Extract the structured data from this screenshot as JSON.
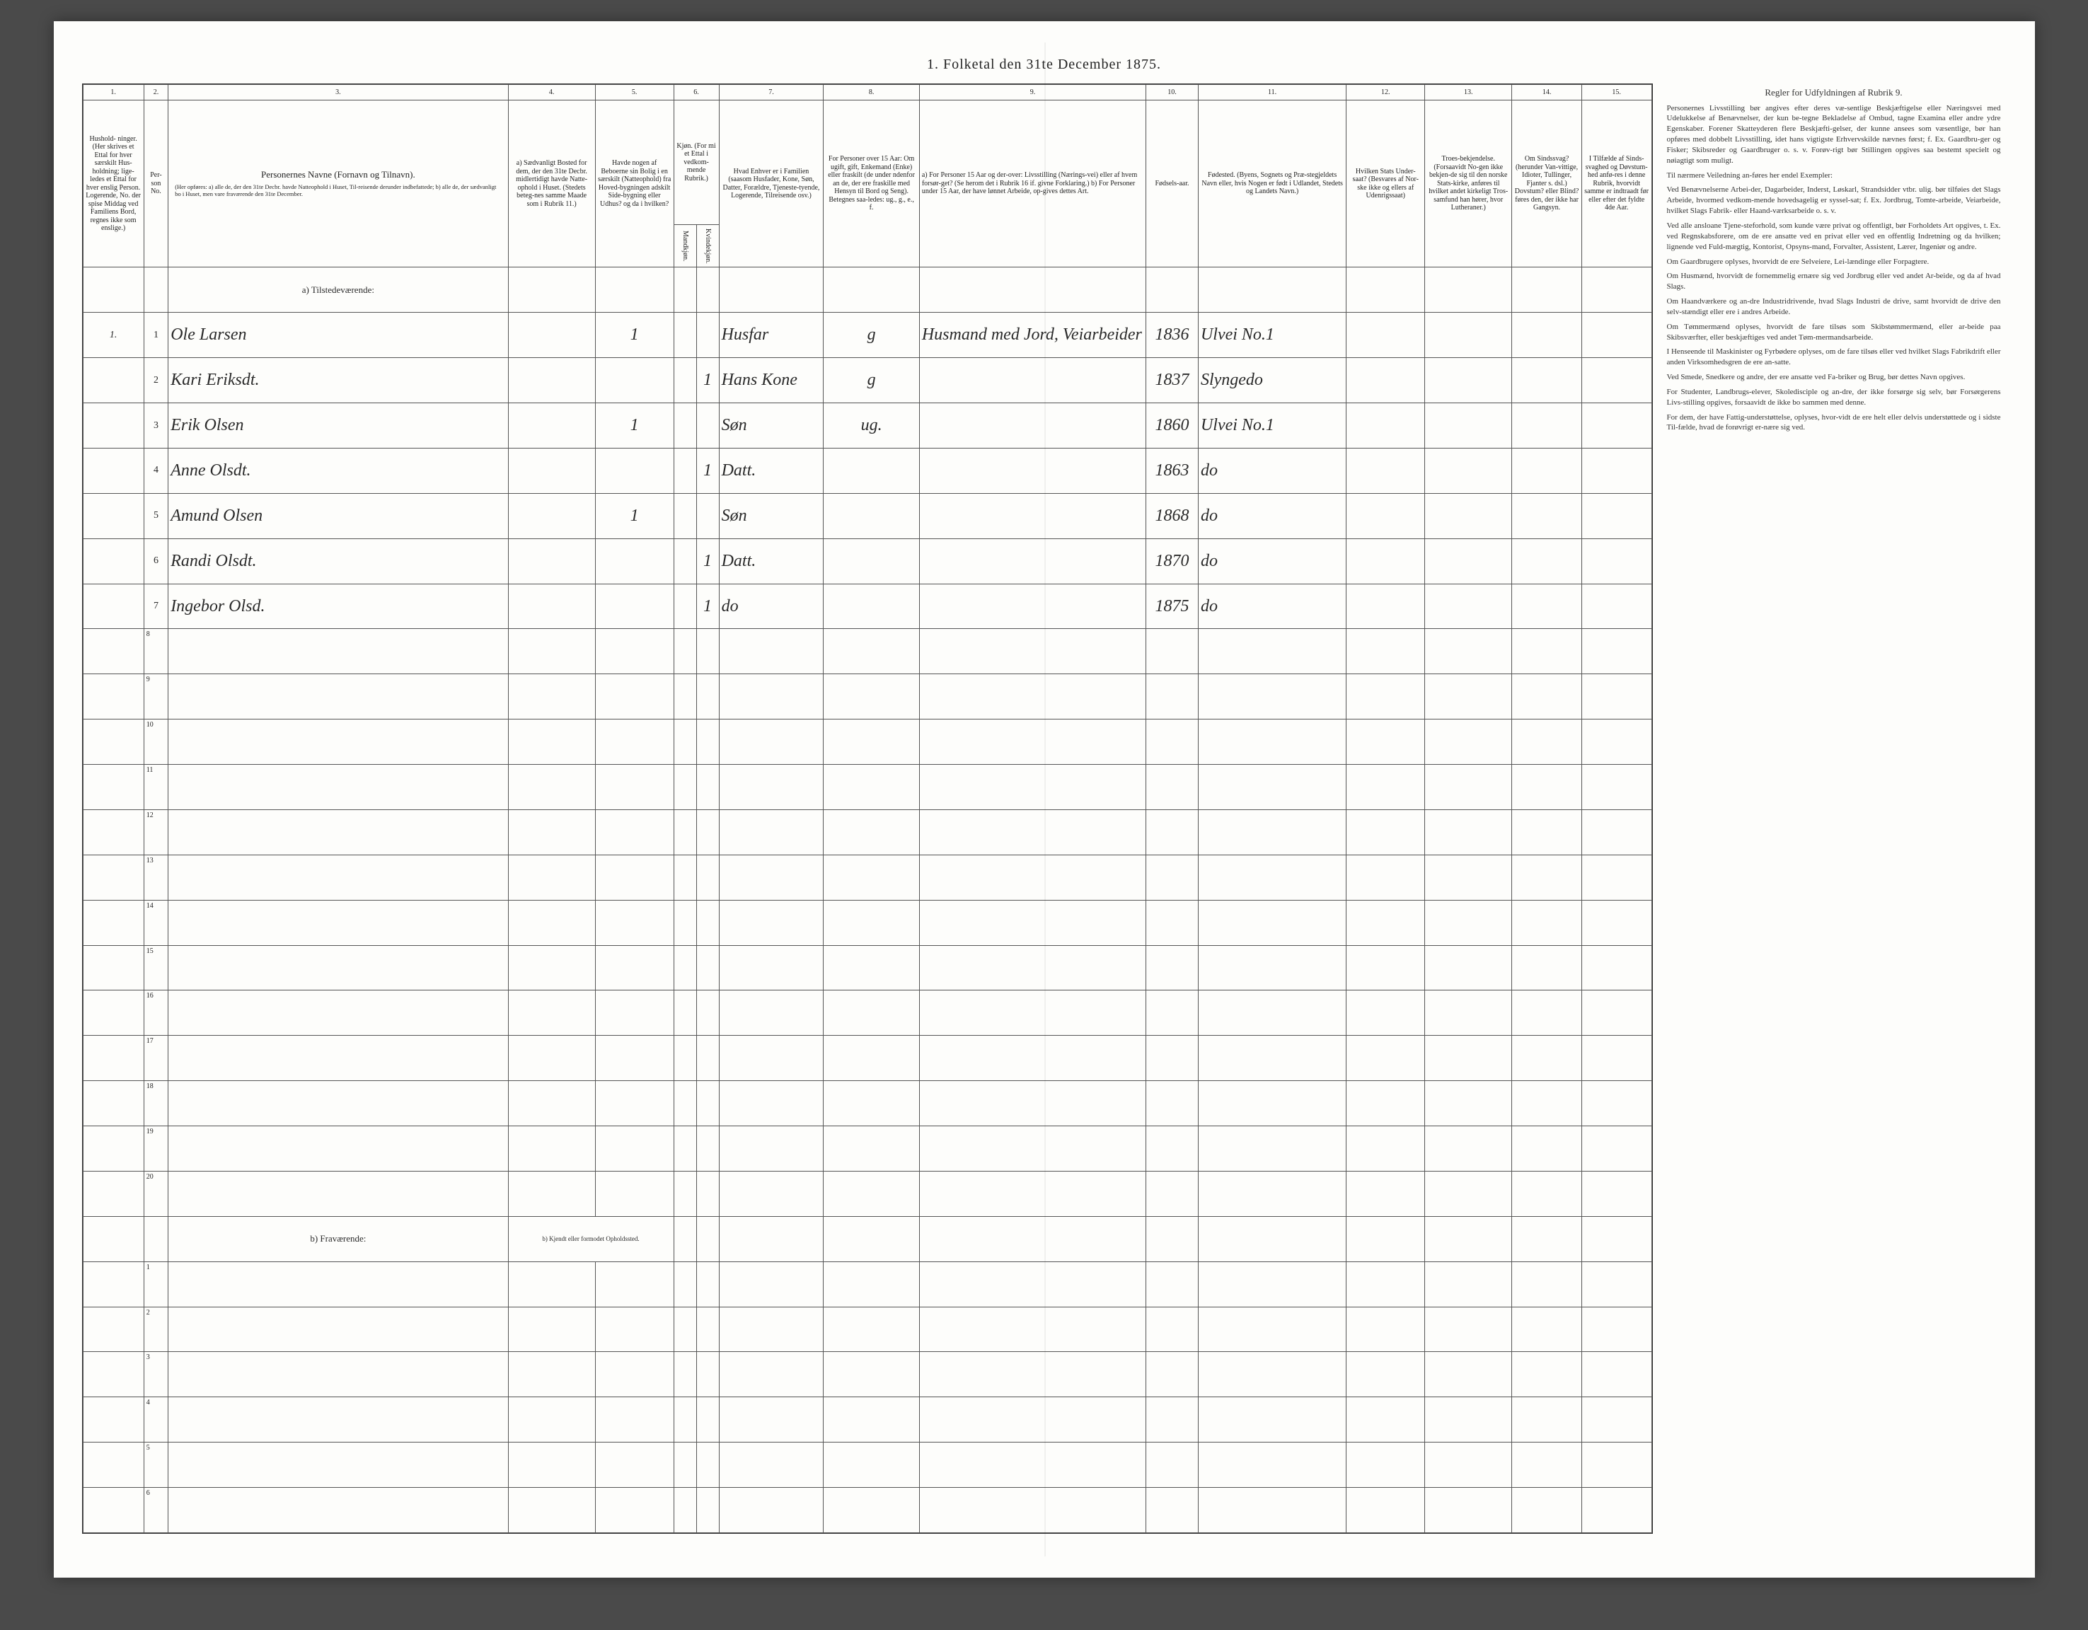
{
  "title": "1. Folketal den 31te December 1875.",
  "headers": {
    "col_numbers": [
      "1.",
      "2.",
      "3.",
      "4.",
      "5.",
      "6.",
      "7.",
      "8.",
      "9.",
      "10.",
      "11.",
      "12.",
      "13.",
      "14.",
      "15."
    ],
    "c1": "Hushold-\nninger.\n(Her skrives et Ettal for hver særskilt Hus-holdning; lige-ledes et Ettal for hver enslig Person. Logerende, No. der spise Middag ved Familiens Bord, regnes ikke som enslige.)",
    "c2": "Per-son No.",
    "c3_title": "Personernes Navne (Fornavn og Tilnavn).",
    "c3_sub": "(Her opføres:\na) alle de, der den 31te Decbr. havde Natteophold i Huset, Til-reisende derunder indbefattede;\nb) alle de, der sædvanligt bo i Huset, men vare fraværende den 31te December.",
    "c4": "a) Sædvanligt Bosted for dem, der den 31te Decbr. midlertidigt havde Natte-ophold i Huset. (Stedets beteg-nes samme Maade som i Rubrik 11.)",
    "c5": "Havde nogen af Beboerne sin Bolig i en særskilt (Natteophold) fra Hoved-bygningen adskilt Side-bygning eller Udhus? og da i hvilken?",
    "c6": "Kjøn. (For mi et Ettal i vedkom-mende Rubrik.)",
    "c6a": "Mandkjøn.",
    "c6b": "Kvindekjøn.",
    "c7": "Hvad Enhver er i Familien (saasom Husfader, Kone, Søn, Datter, Forældre, Tjeneste-tyende, Logerende, Tilreisende osv.)",
    "c8": "For Personer over 15 Aar: Om ugift, gift, Enkemand (Enke) eller fraskilt (de under ndenfor an de, der ere fraskille med Hensyn til Bord og Seng). Betegnes saa-ledes: ug., g., e., f.",
    "c9": "a) For Personer 15 Aar og der-over: Livsstilling (Nærings-vei) eller af hvem forsør-get? (Se herom det i Rubrik 16 if. givne Forklaring.)\nb) For Personer under 15 Aar, der have lønnet Arbeide, op-gives dettes Art.",
    "c10": "Fødsels-aar.",
    "c11": "Fødested.\n(Byens, Sognets og Præ-stegjeldets Navn eller, hvis Nogen er født i Udlandet, Stedets og Landets Navn.)",
    "c12": "Hvilken Stats Under-saat?\n(Besvares af Nor-ske ikke og ellers af Udenrigssaat)",
    "c13": "Troes-bekjendelse. (Forsaavidt No-gen ikke bekjen-de sig til den norske Stats-kirke, anføres til hvilket andet kirkeligt Tros-samfund han hører, hvor Lutheraner.)",
    "c14": "Om Sindssvag? (herunder Van-vittige, Idioter, Tullinger, Fjanter s. dsl.) Dovstum? eller Blind? føres den, der ikke har Gangsyn.",
    "c15": "I Tilfælde af Sinds-svaghed og Døvstum-hed anfø-res i denne Rubrik, hvorvidt samme er indtraadt før eller efter det fyldte 4de Aar.",
    "section_a": "a) Tilstedeværende:",
    "section_b": "b) Fraværende:",
    "section_b_sub": "b) Kjendt eller formodet Opholdssted."
  },
  "rows": [
    {
      "hh": "1.",
      "no": "1",
      "name": "Ole Larsen",
      "c5": "1",
      "sexM": "",
      "sexF": "",
      "rel": "Husfar",
      "civ": "g",
      "occ": "Husmand med Jord, Veiarbeider",
      "year": "1836",
      "place": "Ulvei No.1"
    },
    {
      "hh": "",
      "no": "2",
      "name": "Kari Eriksdt.",
      "c5": "",
      "sexM": "",
      "sexF": "1",
      "rel": "Hans Kone",
      "civ": "g",
      "occ": "",
      "year": "1837",
      "place": "Slyngedo"
    },
    {
      "hh": "",
      "no": "3",
      "name": "Erik Olsen",
      "c5": "1",
      "sexM": "",
      "sexF": "",
      "rel": "Søn",
      "civ": "ug.",
      "occ": "",
      "year": "1860",
      "place": "Ulvei No.1"
    },
    {
      "hh": "",
      "no": "4",
      "name": "Anne Olsdt.",
      "c5": "",
      "sexM": "",
      "sexF": "1",
      "rel": "Datt.",
      "civ": "",
      "occ": "",
      "year": "1863",
      "place": "do"
    },
    {
      "hh": "",
      "no": "5",
      "name": "Amund Olsen",
      "c5": "1",
      "sexM": "",
      "sexF": "",
      "rel": "Søn",
      "civ": "",
      "occ": "",
      "year": "1868",
      "place": "do"
    },
    {
      "hh": "",
      "no": "6",
      "name": "Randi Olsdt.",
      "c5": "",
      "sexM": "",
      "sexF": "1",
      "rel": "Datt.",
      "civ": "",
      "occ": "",
      "year": "1870",
      "place": "do"
    },
    {
      "hh": "",
      "no": "7",
      "name": "Ingebor Olsd.",
      "c5": "",
      "sexM": "",
      "sexF": "1",
      "rel": "do",
      "civ": "",
      "occ": "",
      "year": "1875",
      "place": "do"
    }
  ],
  "empty_a": [
    "8",
    "9",
    "10",
    "11",
    "12",
    "13",
    "14",
    "15",
    "16",
    "17",
    "18",
    "19",
    "20"
  ],
  "empty_b": [
    "1",
    "2",
    "3",
    "4",
    "5",
    "6"
  ],
  "side": {
    "heading": "Regler for Udfyldningen af Rubrik 9.",
    "paras": [
      "Personernes Livsstilling bør angives efter deres væ-sentlige Beskjæftigelse eller Næringsvei med Udelukkelse af Benævnelser, der kun be-tegne Bekladelse af Ombud, tagne Examina eller andre ydre Egenskaber. Forener Skatteyderen flere Beskjæfti-gelser, der kunne ansees som væsentlige, bør han opføres med dobbelt Livsstilling, idet hans vigtigste Erhvervskilde nævnes først; f. Ex. Gaardbru-ger og Fisker; Skibsreder og Gaardbruger o. s. v. Forøv-rigt bør Stillingen opgives saa bestemt specielt og nøiagtigt som muligt.",
      "Til nærmere Veiledning an-føres her endel Exempler:",
      "Ved Benævnelserne Arbei-der, Dagarbeider, Inderst, Løskarl, Strandsidder vtbr. ulig. bør tilføies det Slags Arbeide, hvormed vedkom-mende hovedsagelig er syssel-sat; f. Ex. Jordbrug, Tomte-arbeide, Veiarbeide, hvilket Slags Fabrik- eller Haand-værksarbeide o. s. v.",
      "Ved alle ansloane Tjene-steforhold, som kunde være privat og offentligt, bør Forholdets Art opgives, t. Ex. ved Regnskabsforere, om de ere ansatte ved en privat eller ved en offentlig Indretning og da hvilken; lignende ved Fuld-mægtig, Kontorist, Opsyns-mand, Forvalter, Assistent, Lærer, Ingeniør og andre.",
      "Om Gaardbrugere oplyses, hvorvidt de ere Selveiere, Lei-lændinge eller Forpagtere.",
      "Om Husmænd, hvorvidt de fornemmelig ernære sig ved Jordbrug eller ved andet Ar-beide, og da af hvad Slags.",
      "Om Haandværkere og an-dre Industridrivende, hvad Slags Industri de drive, samt hvorvidt de drive den selv-stændigt eller ere i andres Arbeide.",
      "Om Tømmermænd oplyses, hvorvidt de fare tilsøs som Skibstømmermænd, eller ar-beide paa Skibsværfter, eller beskjæftiges ved andet Tøm-mermandsarbeide.",
      "I Henseende til Maskinister og Fyrbødere oplyses, om de fare tilsøs eller ved hvilket Slags Fabrikdrift eller anden Virksomhedsgren de ere an-satte.",
      "Ved Smede, Snedkere og andre, der ere ansatte ved Fa-briker og Brug, bør dettes Navn opgives.",
      "For Studenter, Landbrugs-elever, Skoledisciple og an-dre, der ikke forsørge sig selv, bør Forsørgerens Livs-stilling opgives, forsaavidt de ikke bo sammen med denne.",
      "For dem, der have Fattig-understøttelse, oplyses, hvor-vidt de ere helt eller delvis understøttede og i sidste Til-fælde, hvad de forøvrigt er-nære sig ved."
    ]
  }
}
